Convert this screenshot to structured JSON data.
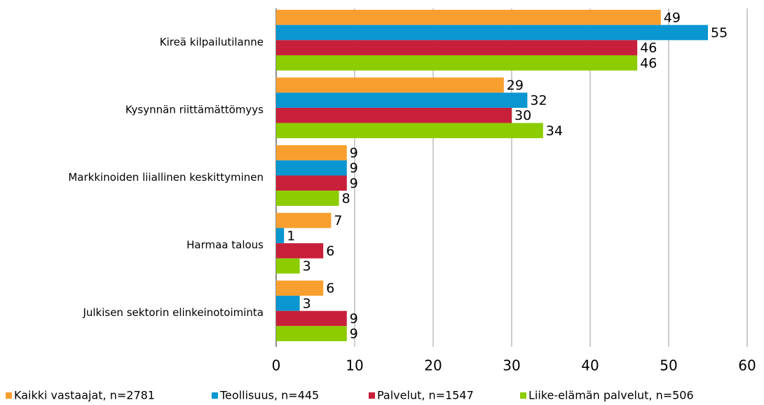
{
  "chart_data": {
    "type": "hbar",
    "categories": [
      "Kireä kilpailutilanne",
      "Kysynnän riittämättömyys",
      "Markkinoiden liiallinen keskittyminen",
      "Harmaa talous",
      "Julkisen sektorin elinkeinotoiminta"
    ],
    "series": [
      {
        "name": "Kaikki vastaajat, n=2781",
        "color": "#f99f2f",
        "values": [
          49,
          29,
          9,
          7,
          6
        ]
      },
      {
        "name": "Teollisuus, n=445",
        "color": "#0a96d1",
        "values": [
          55,
          32,
          9,
          1,
          3
        ]
      },
      {
        "name": "Palvelut, n=1547",
        "color": "#c8203a",
        "values": [
          46,
          30,
          9,
          6,
          9
        ]
      },
      {
        "name": "Liike-elämän palvelut, n=506",
        "color": "#8ccc00",
        "values": [
          46,
          34,
          8,
          3,
          9
        ]
      }
    ],
    "xlim": [
      0,
      60
    ],
    "xticks": [
      0,
      10,
      20,
      30,
      40,
      50,
      60
    ],
    "grid": true,
    "legend": "bottom"
  }
}
